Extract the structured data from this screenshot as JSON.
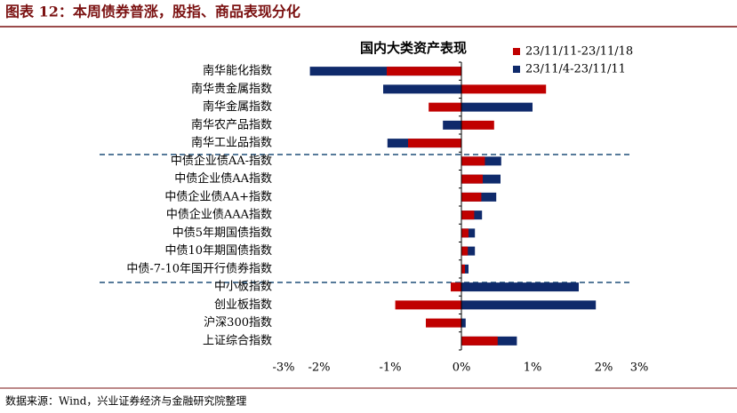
{
  "header": {
    "title": "图表 12：本周债券普涨，股指、商品表现分化"
  },
  "chart_data": {
    "type": "hbar",
    "title": "国内大类资产表现",
    "categories": [
      "南华能化指数",
      "南华贵金属指数",
      "南华金属指数",
      "南华农产品指数",
      "南华工业品指数",
      "中债企业债AA-指数",
      "中债企业债AA指数",
      "中债企业债AA+指数",
      "中债企业债AAA指数",
      "中债5年期国债指数",
      "中债10年期国债指数",
      "中债-7-10年国开行债券指数",
      "中小板指数",
      "创业板指数",
      "沪深300指数",
      "上证综合指数"
    ],
    "series": [
      {
        "name": "23/11/4-23/11/11",
        "color": "#0f2a6b",
        "values": [
          -2.13,
          -1.1,
          1.0,
          -0.26,
          -1.04,
          0.56,
          0.55,
          0.49,
          0.29,
          0.19,
          0.19,
          0.1,
          1.65,
          1.89,
          0.06,
          0.78
        ]
      },
      {
        "name": "23/11/11-23/11/18",
        "color": "#c00000",
        "values": [
          -1.05,
          1.19,
          -0.46,
          0.46,
          -0.75,
          0.33,
          0.3,
          0.28,
          0.18,
          0.1,
          0.09,
          0.05,
          -0.15,
          -0.93,
          -0.5,
          0.51
        ]
      }
    ],
    "xlim": [
      -2.5,
      2.5
    ],
    "xticks": [
      {
        "value": -2.5,
        "label": "-3%"
      },
      {
        "value": -2,
        "label": "-2%"
      },
      {
        "value": -1,
        "label": "-1%"
      },
      {
        "value": 0,
        "label": "0%"
      },
      {
        "value": 1,
        "label": "1%"
      },
      {
        "value": 2,
        "label": "2%"
      },
      {
        "value": 2.5,
        "label": "3%"
      }
    ],
    "grid": false
  },
  "footer": {
    "source": "数据来源：Wind，兴业证券经济与金融研究院整理"
  }
}
